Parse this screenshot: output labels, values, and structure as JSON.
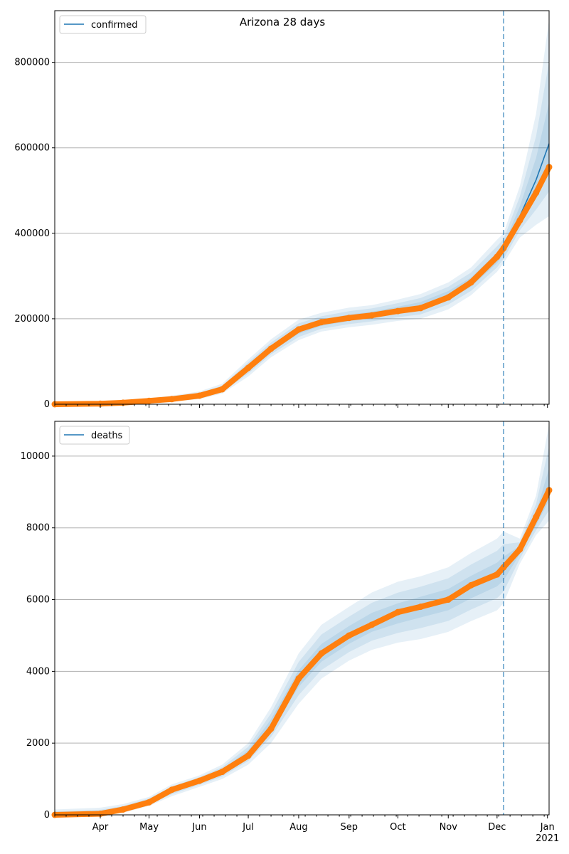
{
  "title": "Arizona 28 days",
  "colors": {
    "model": "#1f77b4",
    "observed": "#ff7f0e",
    "band": "#1f77b4",
    "grid": "#b0b0b0"
  },
  "x_axis": {
    "range_days_2020": [
      63,
      367
    ],
    "forecast_start_day": 339,
    "month_ticks": [
      {
        "day": 91,
        "label": "Apr"
      },
      {
        "day": 121,
        "label": "May"
      },
      {
        "day": 152,
        "label": "Jun"
      },
      {
        "day": 182,
        "label": "Jul"
      },
      {
        "day": 213,
        "label": "Aug"
      },
      {
        "day": 244,
        "label": "Sep"
      },
      {
        "day": 274,
        "label": "Oct"
      },
      {
        "day": 305,
        "label": "Nov"
      },
      {
        "day": 335,
        "label": "Dec"
      },
      {
        "day": 366,
        "label": "Jan"
      }
    ],
    "year_label": "2021"
  },
  "chart_data": [
    {
      "type": "line",
      "legend": "confirmed",
      "legend_position": "top-left",
      "ylim": [
        0,
        921000
      ],
      "yticks": [
        0,
        200000,
        400000,
        600000,
        800000
      ],
      "grid": true,
      "x": [
        63,
        91,
        105,
        121,
        135,
        152,
        166,
        182,
        196,
        213,
        227,
        244,
        258,
        274,
        288,
        305,
        319,
        335,
        339,
        349,
        359,
        367
      ],
      "observed": [
        0,
        1200,
        3500,
        8000,
        12000,
        20000,
        35000,
        85000,
        130000,
        175000,
        192000,
        202000,
        208000,
        218000,
        225000,
        250000,
        285000,
        345000,
        365000,
        430000,
        495000,
        555000
      ],
      "model": [
        0,
        1200,
        3500,
        8000,
        12000,
        20000,
        35000,
        85000,
        130000,
        172000,
        190000,
        202000,
        209000,
        220000,
        230000,
        255000,
        285000,
        340000,
        360000,
        440000,
        525000,
        610000
      ],
      "band_lo": [
        0,
        0,
        1000,
        4000,
        6000,
        12000,
        25000,
        65000,
        110000,
        150000,
        170000,
        180000,
        186000,
        195000,
        200000,
        222000,
        255000,
        310000,
        330000,
        390000,
        420000,
        440000
      ],
      "band_hi": [
        5000,
        6000,
        9000,
        14000,
        20000,
        30000,
        48000,
        105000,
        152000,
        198000,
        214000,
        226000,
        232000,
        245000,
        258000,
        285000,
        320000,
        385000,
        400000,
        510000,
        680000,
        900000
      ],
      "band_levels": [
        1,
        0.66,
        0.33
      ]
    },
    {
      "type": "line",
      "legend": "deaths",
      "legend_position": "top-left",
      "ylim": [
        0,
        10970
      ],
      "yticks": [
        0,
        2000,
        4000,
        6000,
        8000,
        10000
      ],
      "grid": true,
      "x": [
        63,
        91,
        105,
        121,
        135,
        152,
        166,
        182,
        196,
        213,
        227,
        244,
        258,
        274,
        288,
        305,
        319,
        335,
        339,
        349,
        359,
        367
      ],
      "observed": [
        0,
        30,
        150,
        350,
        700,
        950,
        1200,
        1650,
        2400,
        3800,
        4500,
        5000,
        5300,
        5650,
        5800,
        6000,
        6400,
        6700,
        6900,
        7400,
        8300,
        9050
      ],
      "model": [
        0,
        30,
        150,
        380,
        680,
        950,
        1200,
        1700,
        2500,
        3800,
        4500,
        5000,
        5350,
        5600,
        5800,
        6000,
        6350,
        6700,
        6850,
        7400,
        8200,
        9050
      ],
      "band_lo": [
        0,
        0,
        60,
        250,
        520,
        780,
        1000,
        1400,
        2000,
        3100,
        3800,
        4300,
        4600,
        4800,
        4900,
        5100,
        5400,
        5700,
        5900,
        7000,
        7800,
        8200
      ],
      "band_hi": [
        150,
        200,
        300,
        500,
        850,
        1100,
        1400,
        2000,
        3000,
        4500,
        5300,
        5800,
        6200,
        6500,
        6650,
        6900,
        7300,
        7700,
        7900,
        7700,
        8900,
        10900
      ],
      "band_levels": [
        1,
        0.66,
        0.33
      ]
    }
  ]
}
